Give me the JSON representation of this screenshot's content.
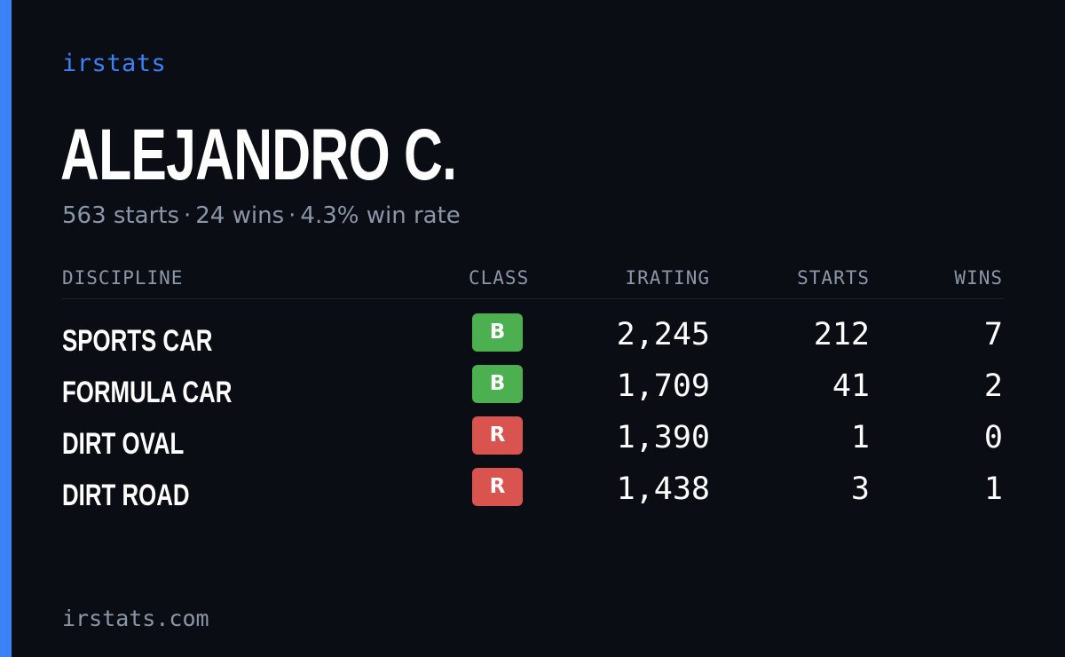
{
  "brand": "irstats",
  "driver": {
    "name": "ALEJANDRO C.",
    "starts_text": "563 starts",
    "wins_text": "24 wins",
    "win_rate_text": "4.3% win rate",
    "separator": "·"
  },
  "table": {
    "headers": {
      "discipline": "DISCIPLINE",
      "class": "CLASS",
      "irating": "IRATING",
      "starts": "STARTS",
      "wins": "WINS"
    },
    "rows": [
      {
        "discipline": "SPORTS CAR",
        "class": "B",
        "class_color": "#4caf50",
        "irating": "2,245",
        "starts": "212",
        "wins": "7"
      },
      {
        "discipline": "FORMULA CAR",
        "class": "B",
        "class_color": "#4caf50",
        "irating": "1,709",
        "starts": "41",
        "wins": "2"
      },
      {
        "discipline": "DIRT OVAL",
        "class": "R",
        "class_color": "#d9534f",
        "irating": "1,390",
        "starts": "1",
        "wins": "0"
      },
      {
        "discipline": "DIRT ROAD",
        "class": "R",
        "class_color": "#d9534f",
        "irating": "1,438",
        "starts": "3",
        "wins": "1"
      }
    ]
  },
  "footer": "irstats.com",
  "colors": {
    "background": "#0a0d14",
    "accent": "#3b82f6",
    "muted_text": "#8b96a8",
    "class_b": "#4caf50",
    "class_r": "#d9534f"
  }
}
